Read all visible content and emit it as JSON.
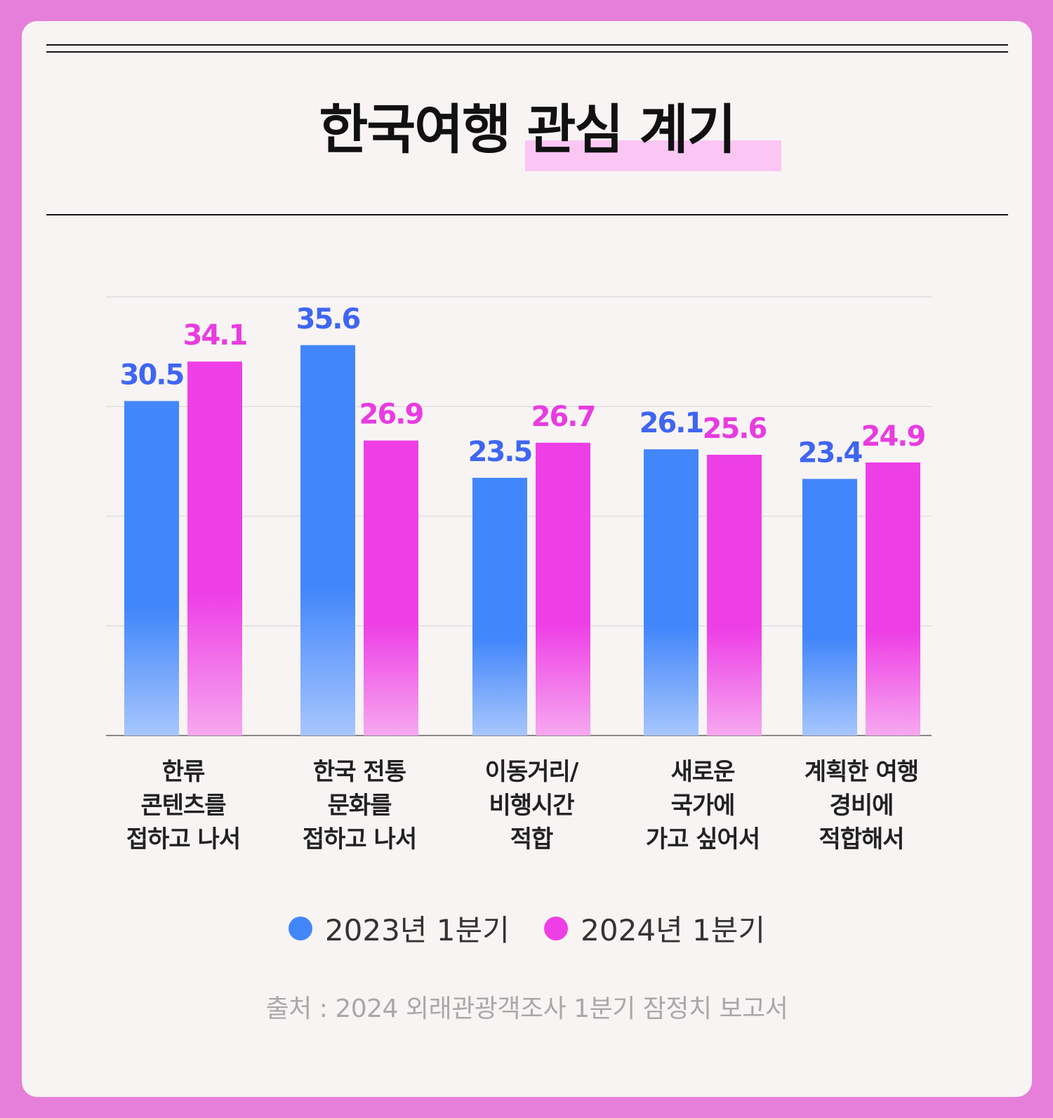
{
  "title": "한국여행 관심 계기",
  "source": "출처 : 2024 외래관광객조사 1분기 잠정치 보고서",
  "colors": {
    "series_2023": "#4286fb",
    "series_2024": "#ee3fe6",
    "background": "#e57fd9"
  },
  "legend": [
    {
      "label": "2023년 1분기",
      "color": "#4286fb"
    },
    {
      "label": "2024년 1분기",
      "color": "#ee3fe6"
    }
  ],
  "chart_data": {
    "type": "bar",
    "title": "한국여행 관심 계기",
    "categories": [
      "한류\n콘텐츠를\n접하고 나서",
      "한국 전통\n문화를\n접하고 나서",
      "이동거리/\n비행시간\n적합",
      "새로운\n국가에\n가고 싶어서",
      "계획한 여행\n경비에\n적합해서"
    ],
    "series": [
      {
        "name": "2023년 1분기",
        "values": [
          30.5,
          35.6,
          23.5,
          26.1,
          23.4
        ]
      },
      {
        "name": "2024년 1분기",
        "values": [
          34.1,
          26.9,
          26.7,
          25.6,
          24.9
        ]
      }
    ],
    "ylim": [
      0,
      40
    ],
    "grid": true,
    "legend_position": "bottom"
  }
}
